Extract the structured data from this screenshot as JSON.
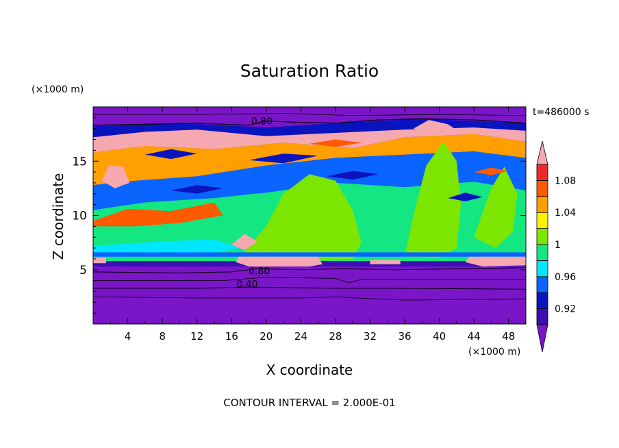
{
  "chart_data": {
    "type": "heatmap",
    "title": "Saturation Ratio",
    "xlabel": "X coordinate",
    "ylabel": "Z coordinate",
    "x_unit_label": "(×1000 m)",
    "y_unit_label": "(×1000 m)",
    "time_label": "t=486000 s",
    "footer": "CONTOUR INTERVAL = 2.000E-01",
    "xlim": [
      0,
      50
    ],
    "ylim": [
      0,
      20
    ],
    "x_ticks": [
      4,
      8,
      12,
      16,
      20,
      24,
      28,
      32,
      36,
      40,
      44,
      48
    ],
    "y_ticks": [
      5,
      10,
      15
    ],
    "contour_labels": [
      {
        "text": "0.80",
        "x": 19.5,
        "y": 18.7
      },
      {
        "text": "0.80",
        "x": 19.2,
        "y": 4.9
      },
      {
        "text": "0.40",
        "x": 17.8,
        "y": 3.7
      }
    ],
    "colorbar": {
      "ticks": [
        0.92,
        0.96,
        1,
        1.04,
        1.08
      ],
      "bins": [
        {
          "from": null,
          "to": 0.9,
          "color": "#7a15c8"
        },
        {
          "from": 0.9,
          "to": 0.92,
          "color": "#3c0fb4"
        },
        {
          "from": 0.92,
          "to": 0.94,
          "color": "#0a14be"
        },
        {
          "from": 0.94,
          "to": 0.96,
          "color": "#0a64ff"
        },
        {
          "from": 0.96,
          "to": 0.98,
          "color": "#00e6ff"
        },
        {
          "from": 0.98,
          "to": 1.0,
          "color": "#14e682"
        },
        {
          "from": 1.0,
          "to": 1.02,
          "color": "#7de600"
        },
        {
          "from": 1.02,
          "to": 1.04,
          "color": "#fff000"
        },
        {
          "from": 1.04,
          "to": 1.06,
          "color": "#ffa000"
        },
        {
          "from": 1.06,
          "to": 1.08,
          "color": "#ff5a00"
        },
        {
          "from": 1.08,
          "to": 1.1,
          "color": "#f02828"
        },
        {
          "from": 1.1,
          "to": null,
          "color": "#f5a8b0"
        }
      ]
    },
    "regions": [
      {
        "value": 0.88,
        "points": [
          [
            0,
            0
          ],
          [
            50,
            0
          ],
          [
            50,
            5.3
          ],
          [
            0,
            5.3
          ]
        ]
      },
      {
        "value": 0.88,
        "points": [
          [
            0,
            18.2
          ],
          [
            10,
            18.5
          ],
          [
            20,
            18.1
          ],
          [
            30,
            18.6
          ],
          [
            38,
            18.9
          ],
          [
            50,
            18.3
          ],
          [
            50,
            20
          ],
          [
            0,
            20
          ]
        ]
      },
      {
        "value": 0.93,
        "points": [
          [
            0,
            17.2
          ],
          [
            6,
            17.7
          ],
          [
            12,
            17.9
          ],
          [
            20,
            17.3
          ],
          [
            28,
            17.6
          ],
          [
            36,
            17.9
          ],
          [
            44,
            18.1
          ],
          [
            50,
            17.8
          ],
          [
            50,
            18.5
          ],
          [
            38,
            18.9
          ],
          [
            30,
            18.6
          ],
          [
            20,
            18.1
          ],
          [
            10,
            18.5
          ],
          [
            0,
            18.2
          ]
        ]
      },
      {
        "value": 1.11,
        "points": [
          [
            0,
            15.8
          ],
          [
            6,
            16.4
          ],
          [
            14,
            16.1
          ],
          [
            22,
            16.7
          ],
          [
            30,
            16.2
          ],
          [
            36,
            17.2
          ],
          [
            44,
            17.5
          ],
          [
            50,
            16.8
          ],
          [
            50,
            17.8
          ],
          [
            44,
            18.1
          ],
          [
            36,
            17.9
          ],
          [
            28,
            17.6
          ],
          [
            20,
            17.3
          ],
          [
            12,
            17.9
          ],
          [
            6,
            17.7
          ],
          [
            0,
            17.2
          ]
        ]
      },
      {
        "value": 1.05,
        "points": [
          [
            0,
            12.8
          ],
          [
            5,
            13.2
          ],
          [
            12,
            13.6
          ],
          [
            20,
            14.6
          ],
          [
            28,
            15.3
          ],
          [
            36,
            15.6
          ],
          [
            44,
            15.9
          ],
          [
            50,
            15.3
          ],
          [
            50,
            16.8
          ],
          [
            44,
            17.5
          ],
          [
            36,
            17.2
          ],
          [
            30,
            16.2
          ],
          [
            22,
            16.7
          ],
          [
            14,
            16.1
          ],
          [
            6,
            16.4
          ],
          [
            0,
            15.8
          ]
        ]
      },
      {
        "value": 0.95,
        "points": [
          [
            0,
            10.5
          ],
          [
            6,
            11.2
          ],
          [
            14,
            11.6
          ],
          [
            20,
            12.1
          ],
          [
            28,
            13.0
          ],
          [
            36,
            12.6
          ],
          [
            44,
            13.1
          ],
          [
            50,
            12.3
          ],
          [
            50,
            15.3
          ],
          [
            44,
            15.9
          ],
          [
            36,
            15.6
          ],
          [
            28,
            15.3
          ],
          [
            20,
            14.6
          ],
          [
            12,
            13.6
          ],
          [
            5,
            13.2
          ],
          [
            0,
            12.8
          ]
        ]
      },
      {
        "value": 0.99,
        "points": [
          [
            0,
            5.3
          ],
          [
            50,
            5.3
          ],
          [
            50,
            12.3
          ],
          [
            44,
            13.1
          ],
          [
            36,
            12.6
          ],
          [
            28,
            13.0
          ],
          [
            20,
            12.1
          ],
          [
            14,
            11.6
          ],
          [
            6,
            11.2
          ],
          [
            0,
            10.5
          ]
        ]
      },
      {
        "value": 1.01,
        "points": [
          [
            17,
            6.2
          ],
          [
            20,
            9.0
          ],
          [
            22,
            12.0
          ],
          [
            25,
            13.8
          ],
          [
            28,
            13.2
          ],
          [
            30,
            10.5
          ],
          [
            31,
            7.5
          ],
          [
            30,
            6.0
          ],
          [
            25,
            5.8
          ],
          [
            20,
            5.8
          ]
        ]
      },
      {
        "value": 1.01,
        "points": [
          [
            36,
            6.2
          ],
          [
            37,
            10.0
          ],
          [
            38.5,
            14.6
          ],
          [
            40.5,
            16.8
          ],
          [
            42,
            15.0
          ],
          [
            42.5,
            11.0
          ],
          [
            42,
            7.0
          ],
          [
            40,
            6.1
          ]
        ]
      },
      {
        "value": 1.01,
        "points": [
          [
            44,
            8.0
          ],
          [
            46,
            12.5
          ],
          [
            47.5,
            14.5
          ],
          [
            49,
            12.0
          ],
          [
            48.5,
            8.5
          ],
          [
            46.5,
            7.0
          ]
        ]
      },
      {
        "value": 1.07,
        "points": [
          [
            0,
            9.5
          ],
          [
            4,
            10.6
          ],
          [
            9,
            10.4
          ],
          [
            14,
            11.2
          ],
          [
            15,
            10.0
          ],
          [
            10,
            9.3
          ],
          [
            5,
            9.0
          ],
          [
            0,
            9.0
          ]
        ]
      },
      {
        "value": 0.97,
        "points": [
          [
            0,
            7.2
          ],
          [
            8,
            7.6
          ],
          [
            14,
            7.8
          ],
          [
            17,
            7.0
          ],
          [
            14,
            6.6
          ],
          [
            6,
            6.5
          ],
          [
            0,
            6.6
          ]
        ]
      },
      {
        "value": 0.95,
        "points": [
          [
            0,
            6.2
          ],
          [
            50,
            6.2
          ],
          [
            50,
            6.6
          ],
          [
            0,
            6.6
          ]
        ]
      },
      {
        "value": 0.91,
        "points": [
          [
            0,
            5.3
          ],
          [
            50,
            5.3
          ],
          [
            50,
            5.8
          ],
          [
            0,
            5.8
          ]
        ]
      },
      {
        "value": 1.11,
        "points": [
          [
            16.5,
            5.7
          ],
          [
            16.8,
            6.2
          ],
          [
            26,
            6.2
          ],
          [
            26.5,
            5.5
          ],
          [
            25,
            5.3
          ],
          [
            18,
            5.3
          ]
        ]
      },
      {
        "value": 1.11,
        "points": [
          [
            43,
            5.7
          ],
          [
            43.5,
            6.2
          ],
          [
            50,
            6.2
          ],
          [
            50,
            5.4
          ],
          [
            45,
            5.3
          ]
        ]
      },
      {
        "value": 1.11,
        "points": [
          [
            0,
            6.1
          ],
          [
            1.5,
            6.1
          ],
          [
            1.5,
            5.6
          ],
          [
            0,
            5.6
          ]
        ]
      },
      {
        "value": 1.11,
        "points": [
          [
            32,
            5.9
          ],
          [
            35.5,
            5.9
          ],
          [
            35.5,
            5.5
          ],
          [
            32,
            5.5
          ]
        ]
      },
      {
        "value": 1.11,
        "points": [
          [
            16,
            7.3
          ],
          [
            17.5,
            8.3
          ],
          [
            19,
            7.6
          ],
          [
            17.5,
            6.8
          ]
        ]
      },
      {
        "value": 1.11,
        "points": [
          [
            1,
            13.2
          ],
          [
            1.8,
            14.6
          ],
          [
            3.5,
            14.5
          ],
          [
            4.2,
            13.0
          ],
          [
            2.5,
            12.5
          ]
        ]
      },
      {
        "value": 1.11,
        "points": [
          [
            37,
            18.0
          ],
          [
            38.8,
            18.8
          ],
          [
            41,
            18.4
          ],
          [
            42.5,
            17.6
          ],
          [
            40,
            17.3
          ]
        ]
      },
      {
        "value": 0.93,
        "points": [
          [
            6,
            15.6
          ],
          [
            9,
            16.1
          ],
          [
            12,
            15.7
          ],
          [
            9,
            15.2
          ]
        ]
      },
      {
        "value": 0.93,
        "points": [
          [
            18,
            15.1
          ],
          [
            22,
            15.7
          ],
          [
            26,
            15.5
          ],
          [
            22,
            14.8
          ]
        ]
      },
      {
        "value": 0.93,
        "points": [
          [
            9,
            12.3
          ],
          [
            12,
            12.8
          ],
          [
            15,
            12.5
          ],
          [
            12,
            12.0
          ]
        ]
      },
      {
        "value": 0.93,
        "points": [
          [
            27,
            13.6
          ],
          [
            30,
            14.1
          ],
          [
            33,
            13.8
          ],
          [
            30,
            13.3
          ]
        ]
      },
      {
        "value": 0.93,
        "points": [
          [
            41,
            11.6
          ],
          [
            43,
            12.1
          ],
          [
            45,
            11.7
          ],
          [
            43,
            11.3
          ]
        ]
      },
      {
        "value": 0.93,
        "points": [
          [
            21,
            17.8
          ],
          [
            24,
            18.1
          ],
          [
            27,
            17.9
          ],
          [
            24,
            17.6
          ]
        ]
      },
      {
        "value": 1.07,
        "points": [
          [
            25,
            16.6
          ],
          [
            28,
            17.0
          ],
          [
            31,
            16.7
          ],
          [
            28,
            16.3
          ]
        ]
      },
      {
        "value": 1.07,
        "points": [
          [
            44,
            14.0
          ],
          [
            46,
            14.4
          ],
          [
            48,
            14.1
          ],
          [
            46,
            13.7
          ]
        ]
      }
    ],
    "contour_lines": [
      {
        "width": 0.8,
        "points": [
          [
            0,
            2.5
          ],
          [
            12,
            2.4
          ],
          [
            24,
            2.4
          ],
          [
            28,
            2.5
          ],
          [
            33,
            2.3
          ],
          [
            36,
            2.2
          ],
          [
            50,
            2.3
          ]
        ]
      },
      {
        "width": 1.0,
        "points": [
          [
            0,
            3.3
          ],
          [
            12,
            3.3
          ],
          [
            18,
            3.4
          ],
          [
            28,
            3.3
          ],
          [
            34,
            3.3
          ],
          [
            50,
            3.2
          ]
        ]
      },
      {
        "width": 0.8,
        "points": [
          [
            0,
            4.0
          ],
          [
            15,
            4.0
          ],
          [
            20,
            4.3
          ],
          [
            28,
            4.2
          ],
          [
            29.5,
            3.8
          ],
          [
            31,
            4.1
          ],
          [
            40,
            4.1
          ],
          [
            50,
            4.1
          ]
        ]
      },
      {
        "width": 1.0,
        "points": [
          [
            0,
            4.8
          ],
          [
            10,
            4.7
          ],
          [
            16,
            4.8
          ],
          [
            19,
            5.1
          ],
          [
            24,
            5.0
          ],
          [
            29,
            5.1
          ],
          [
            35,
            5.0
          ],
          [
            43,
            5.1
          ],
          [
            50,
            5.2
          ]
        ]
      },
      {
        "width": 1.2,
        "points": [
          [
            0,
            18.3
          ],
          [
            6,
            18.4
          ],
          [
            12,
            18.5
          ],
          [
            18,
            18.3
          ],
          [
            20,
            18.7
          ],
          [
            23,
            18.6
          ],
          [
            28,
            18.5
          ],
          [
            33,
            18.8
          ],
          [
            38,
            18.9
          ],
          [
            44,
            18.8
          ],
          [
            50,
            18.5
          ]
        ]
      },
      {
        "width": 0.8,
        "points": [
          [
            0,
            19.3
          ],
          [
            12,
            19.3
          ],
          [
            22,
            19.4
          ],
          [
            30,
            19.2
          ],
          [
            40,
            19.3
          ],
          [
            50,
            19.2
          ]
        ]
      }
    ]
  }
}
